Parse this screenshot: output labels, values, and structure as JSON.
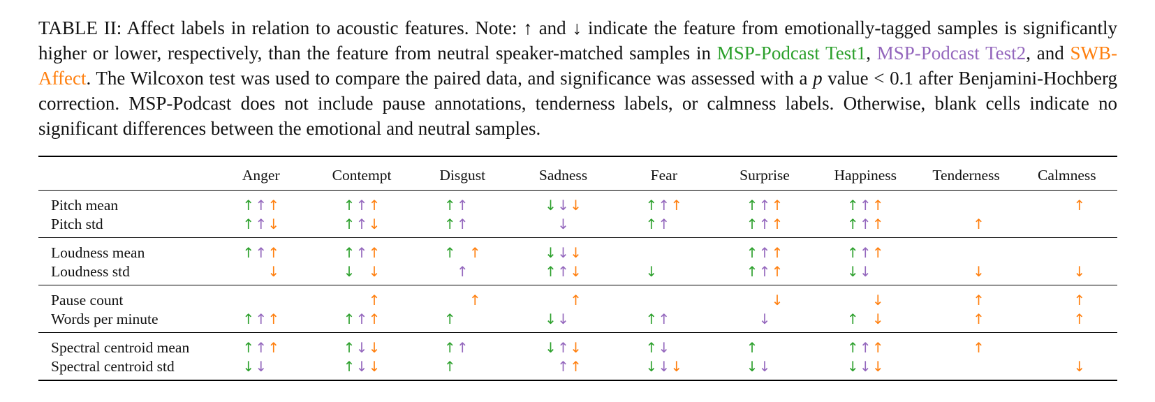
{
  "caption": {
    "p1": "TABLE II: Affect labels in relation to acoustic features. Note: ↑ and ↓ indicate the feature from emotionally-tagged samples is significantly higher or lower, respectively, than the feature from neutral speaker-matched samples in ",
    "test1": "MSP-Podcast Test1",
    "sep1": ", ",
    "test2": "MSP-Podcast Test2",
    "sep2": ", and ",
    "swb": "SWB-Affect",
    "p2": ". The Wilcoxon test was used to compare the paired data, and significance was assessed with a ",
    "p_italic": "p",
    "p3": " value < 0.1 after Benjamini-Hochberg correction. MSP-Podcast does not include pause annotations, tenderness labels, or calmness labels. Otherwise, blank cells indicate no significant differences between the emotional and neutral samples."
  },
  "colors": {
    "test1": "#2ca02c",
    "test2": "#9467bd",
    "swb": "#ff7f0e"
  },
  "table": {
    "columns": [
      "Anger",
      "Contempt",
      "Disgust",
      "Sadness",
      "Fear",
      "Surprise",
      "Happiness",
      "Tenderness",
      "Calmness"
    ],
    "groups": [
      [
        {
          "feature": "Pitch mean",
          "cells": [
            [
              "↑",
              "↑",
              "↑"
            ],
            [
              "↑",
              "↑",
              "↑"
            ],
            [
              "↑",
              "↑",
              ""
            ],
            [
              "↓",
              "↓",
              "↓"
            ],
            [
              "↑",
              "↑",
              "↑"
            ],
            [
              "↑",
              "↑",
              "↑"
            ],
            [
              "↑",
              "↑",
              "↑"
            ],
            [
              "",
              "",
              ""
            ],
            [
              "",
              "",
              "↑"
            ]
          ]
        },
        {
          "feature": "Pitch std",
          "cells": [
            [
              "↑",
              "↑",
              "↓"
            ],
            [
              "↑",
              "↑",
              "↓"
            ],
            [
              "↑",
              "↑",
              ""
            ],
            [
              "",
              "↓",
              ""
            ],
            [
              "↑",
              "↑",
              ""
            ],
            [
              "↑",
              "↑",
              "↑"
            ],
            [
              "↑",
              "↑",
              "↑"
            ],
            [
              "",
              "",
              "↑"
            ],
            [
              "",
              "",
              ""
            ]
          ]
        }
      ],
      [
        {
          "feature": "Loudness mean",
          "cells": [
            [
              "↑",
              "↑",
              "↑"
            ],
            [
              "↑",
              "↑",
              "↑"
            ],
            [
              "↑",
              "",
              "↑"
            ],
            [
              "↓",
              "↓",
              "↓"
            ],
            [
              "",
              "",
              ""
            ],
            [
              "↑",
              "↑",
              "↑"
            ],
            [
              "↑",
              "↑",
              "↑"
            ],
            [
              "",
              "",
              ""
            ],
            [
              "",
              "",
              ""
            ]
          ]
        },
        {
          "feature": "Loudness std",
          "cells": [
            [
              "",
              "",
              "↓"
            ],
            [
              "↓",
              "",
              "↓"
            ],
            [
              "",
              "↑",
              ""
            ],
            [
              "↑",
              "↑",
              "↓"
            ],
            [
              "↓",
              "",
              ""
            ],
            [
              "↑",
              "↑",
              "↑"
            ],
            [
              "↓",
              "↓",
              ""
            ],
            [
              "",
              "",
              "↓"
            ],
            [
              "",
              "",
              "↓"
            ]
          ]
        }
      ],
      [
        {
          "feature": "Pause count",
          "cells": [
            [
              "",
              "",
              ""
            ],
            [
              "",
              "",
              "↑"
            ],
            [
              "",
              "",
              "↑"
            ],
            [
              "",
              "",
              "↑"
            ],
            [
              "",
              "",
              ""
            ],
            [
              "",
              "",
              "↓"
            ],
            [
              "",
              "",
              "↓"
            ],
            [
              "",
              "",
              "↑"
            ],
            [
              "",
              "",
              "↑"
            ]
          ]
        },
        {
          "feature": "Words per minute",
          "cells": [
            [
              "↑",
              "↑",
              "↑"
            ],
            [
              "↑",
              "↑",
              "↑"
            ],
            [
              "↑",
              "",
              ""
            ],
            [
              "↓",
              "↓",
              ""
            ],
            [
              "↑",
              "↑",
              ""
            ],
            [
              "",
              "↓",
              ""
            ],
            [
              "↑",
              "",
              "↓"
            ],
            [
              "",
              "",
              "↑"
            ],
            [
              "",
              "",
              "↑"
            ]
          ]
        }
      ],
      [
        {
          "feature": "Spectral centroid mean",
          "cells": [
            [
              "↑",
              "↑",
              "↑"
            ],
            [
              "↑",
              "↓",
              "↓"
            ],
            [
              "↑",
              "↑",
              ""
            ],
            [
              "↓",
              "↑",
              "↓"
            ],
            [
              "↑",
              "↓",
              ""
            ],
            [
              "↑",
              "",
              ""
            ],
            [
              "↑",
              "↑",
              "↑"
            ],
            [
              "",
              "",
              "↑"
            ],
            [
              "",
              "",
              ""
            ]
          ]
        },
        {
          "feature": "Spectral centroid std",
          "cells": [
            [
              "↓",
              "↓",
              ""
            ],
            [
              "↑",
              "↓",
              "↓"
            ],
            [
              "↑",
              "",
              ""
            ],
            [
              "",
              "↑",
              "↑"
            ],
            [
              "↓",
              "↓",
              "↓"
            ],
            [
              "↓",
              "↓",
              ""
            ],
            [
              "↓",
              "↓",
              "↓"
            ],
            [
              "",
              "",
              ""
            ],
            [
              "",
              "",
              "↓"
            ]
          ]
        }
      ]
    ]
  }
}
